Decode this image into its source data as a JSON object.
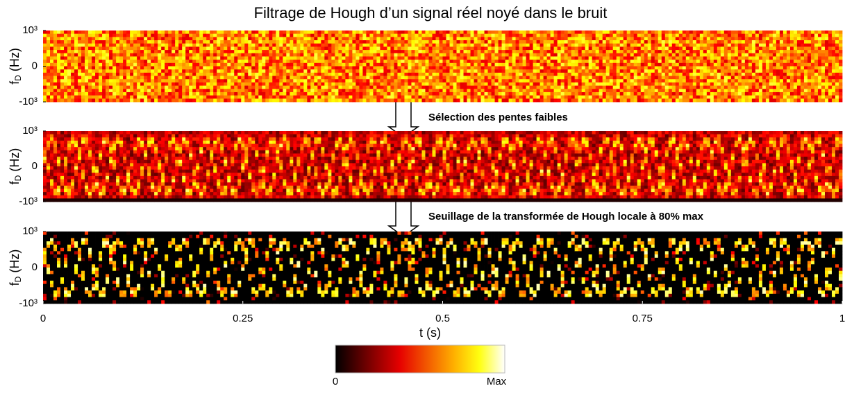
{
  "title": "Filtrage de Hough d’un signal réel noyé dans le bruit",
  "chart_data": [
    {
      "type": "heatmap",
      "ylabel": {
        "symbol": "f",
        "subscript": "D",
        "unit": "(Hz)"
      },
      "ylim": [
        -1000,
        1000
      ],
      "yticks": [
        {
          "value": -1000,
          "label": "-10³"
        },
        0,
        {
          "value": 1000,
          "label": "10³"
        }
      ],
      "xlim": [
        0,
        1
      ]
    },
    {
      "type": "heatmap",
      "annotation": "Sélection des pentes faibles",
      "ylabel": {
        "symbol": "f",
        "subscript": "D",
        "unit": "(Hz)"
      },
      "ylim": [
        -1000,
        1000
      ],
      "yticks": [
        {
          "value": -1000,
          "label": "-10³"
        },
        0,
        {
          "value": 1000,
          "label": "10³"
        }
      ],
      "xlim": [
        0,
        1
      ]
    },
    {
      "type": "heatmap",
      "annotation": "Seuillage de la transformée de Hough locale à 80% max",
      "ylabel": {
        "symbol": "f",
        "subscript": "D",
        "unit": "(Hz)"
      },
      "ylim": [
        -1000,
        1000
      ],
      "yticks": [
        {
          "value": -1000,
          "label": "-10³"
        },
        0,
        {
          "value": 1000,
          "label": "10³"
        }
      ],
      "xlim": [
        0,
        1
      ],
      "xticks": [
        0,
        0.25,
        0.5,
        0.75,
        1
      ],
      "xlabel": "t (s)"
    }
  ],
  "colorbar": {
    "ticks": [
      0,
      {
        "value": 1,
        "label": "Max"
      }
    ]
  }
}
